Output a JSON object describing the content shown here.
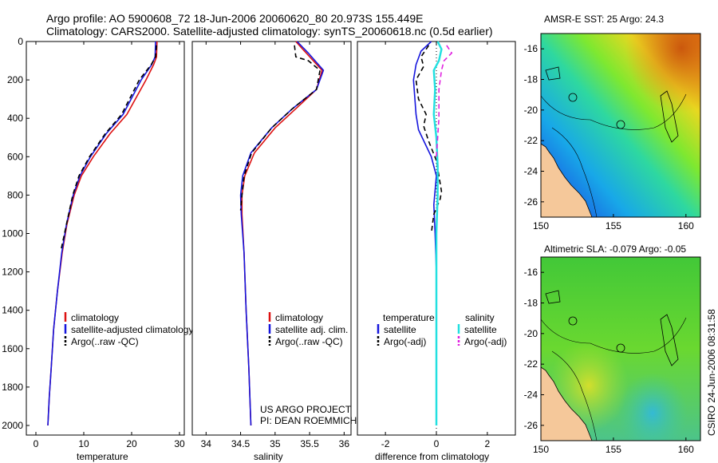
{
  "header": {
    "line1": "Argo profile: AO 5900608_72 18-Jun-2006 20060620_80 20.973S 155.449E",
    "line2": "Climatology: CARS2000. Satellite-adjusted climatology: synTS_20060618.nc (0.5d earlier)"
  },
  "side_text": "CSIRO 24-Jun-2006 08:31:58",
  "project": {
    "line1": "US ARGO PROJECT",
    "line2": "PI: DEAN ROEMMICH"
  },
  "colors": {
    "climatology": "#dd1111",
    "satellite": "#1515dd",
    "argo": "#000000",
    "sat_sal": "#22e0e0",
    "argo_sal": "#e020e0",
    "land": "#f5c89a"
  },
  "chart_data": [
    {
      "id": "temperature",
      "type": "line",
      "xlabel": "temperature",
      "xlim": [
        -2,
        31
      ],
      "ylim": [
        2050,
        0
      ],
      "xticks": [
        "0",
        "10",
        "20",
        "30"
      ],
      "xtick_values": [
        0,
        10,
        20,
        30
      ],
      "yticks": [
        "0",
        "200",
        "400",
        "600",
        "800",
        "1000",
        "1200",
        "1400",
        "1600",
        "1800",
        "2000"
      ],
      "ytick_values": [
        0,
        200,
        400,
        600,
        800,
        1000,
        1200,
        1400,
        1600,
        1800,
        2000
      ],
      "legend": [
        "climatology",
        "satellite-adjusted climatology",
        "Argo(..raw -QC)"
      ],
      "series": [
        {
          "name": "climatology",
          "color": "#dd1111",
          "dash": "",
          "points": [
            [
              25.3,
              0
            ],
            [
              25.2,
              80
            ],
            [
              24.6,
              120
            ],
            [
              23,
              200
            ],
            [
              19,
              380
            ],
            [
              15.5,
              480
            ],
            [
              12,
              600
            ],
            [
              9.5,
              700
            ],
            [
              8,
              800
            ],
            [
              6.5,
              950
            ],
            [
              5.5,
              1100
            ],
            [
              4.5,
              1300
            ],
            [
              3.7,
              1500
            ],
            [
              3.2,
              1700
            ],
            [
              2.8,
              1850
            ],
            [
              2.5,
              2000
            ]
          ]
        },
        {
          "name": "satellite",
          "color": "#1515dd",
          "dash": "",
          "points": [
            [
              25,
              0
            ],
            [
              24.9,
              80
            ],
            [
              24.2,
              120
            ],
            [
              22,
              200
            ],
            [
              18.2,
              380
            ],
            [
              14.7,
              480
            ],
            [
              11.4,
              600
            ],
            [
              9.2,
              700
            ],
            [
              7.8,
              800
            ],
            [
              6.4,
              950
            ],
            [
              5.4,
              1100
            ],
            [
              4.5,
              1300
            ],
            [
              3.7,
              1500
            ],
            [
              3.2,
              1700
            ],
            [
              2.8,
              1850
            ],
            [
              2.5,
              2000
            ]
          ]
        },
        {
          "name": "argo",
          "color": "#000000",
          "dash": "6,4",
          "points": [
            [
              25.2,
              20
            ],
            [
              25,
              80
            ],
            [
              24.1,
              120
            ],
            [
              21.6,
              200
            ],
            [
              17.9,
              380
            ],
            [
              14.5,
              480
            ],
            [
              11.2,
              600
            ],
            [
              9,
              700
            ],
            [
              7.7,
              800
            ],
            [
              6.4,
              950
            ],
            [
              5.3,
              1080
            ]
          ]
        }
      ]
    },
    {
      "id": "salinity",
      "type": "line",
      "xlabel": "salinity",
      "xlim": [
        33.8,
        36.1
      ],
      "ylim": [
        2050,
        0
      ],
      "xticks": [
        "34",
        "34.5",
        "35",
        "35.5",
        "36"
      ],
      "xtick_values": [
        34,
        34.5,
        35,
        35.5,
        36
      ],
      "legend": [
        "climatology",
        "satellite adj. clim.",
        "Argo(..raw -QC)"
      ],
      "series": [
        {
          "name": "climatology",
          "color": "#dd1111",
          "dash": "",
          "points": [
            [
              35.3,
              0
            ],
            [
              35.45,
              60
            ],
            [
              35.68,
              150
            ],
            [
              35.6,
              250
            ],
            [
              35.3,
              350
            ],
            [
              35,
              450
            ],
            [
              34.7,
              580
            ],
            [
              34.56,
              700
            ],
            [
              34.52,
              800
            ],
            [
              34.52,
              900
            ],
            [
              34.55,
              1100
            ],
            [
              34.58,
              1400
            ],
            [
              34.62,
              1700
            ],
            [
              34.65,
              2000
            ]
          ]
        },
        {
          "name": "satellite",
          "color": "#1515dd",
          "dash": "",
          "points": [
            [
              35.32,
              0
            ],
            [
              35.48,
              60
            ],
            [
              35.7,
              150
            ],
            [
              35.6,
              250
            ],
            [
              35.25,
              350
            ],
            [
              34.95,
              450
            ],
            [
              34.65,
              580
            ],
            [
              34.53,
              700
            ],
            [
              34.5,
              800
            ],
            [
              34.51,
              900
            ],
            [
              34.55,
              1100
            ],
            [
              34.58,
              1400
            ],
            [
              34.62,
              1700
            ],
            [
              34.65,
              2000
            ]
          ]
        },
        {
          "name": "argo",
          "color": "#000000",
          "dash": "6,4",
          "points": [
            [
              35.28,
              20
            ],
            [
              35.3,
              80
            ],
            [
              35.48,
              100
            ],
            [
              35.65,
              150
            ],
            [
              35.6,
              250
            ],
            [
              35.25,
              350
            ],
            [
              34.95,
              450
            ],
            [
              34.66,
              580
            ],
            [
              34.55,
              700
            ],
            [
              34.52,
              800
            ],
            [
              34.5,
              880
            ]
          ]
        }
      ]
    },
    {
      "id": "difference",
      "type": "line",
      "xlabel": "difference from climatology",
      "xlim": [
        -3.1,
        3.1
      ],
      "ylim": [
        2050,
        0
      ],
      "xticks": [
        "-2",
        "0",
        "2"
      ],
      "xtick_values": [
        -2,
        0,
        2
      ],
      "legend_headers": [
        "temperature",
        "salinity"
      ],
      "legend": [
        "satellite",
        "Argo(-adj)",
        "satellite",
        "Argo(-adj)"
      ],
      "series": [
        {
          "name": "temperature satellite",
          "color": "#1515dd",
          "dash": "",
          "points": [
            [
              -0.2,
              0
            ],
            [
              -0.6,
              50
            ],
            [
              -0.8,
              120
            ],
            [
              -0.9,
              200
            ],
            [
              -0.8,
              380
            ],
            [
              -0.7,
              460
            ],
            [
              -0.2,
              600
            ],
            [
              0,
              700
            ],
            [
              -0.1,
              850
            ],
            [
              -0.05,
              1000
            ],
            [
              0,
              1200
            ],
            [
              0,
              1500
            ],
            [
              0,
              2000
            ]
          ]
        },
        {
          "name": "temperature argo",
          "color": "#000000",
          "dash": "6,4",
          "points": [
            [
              -0.3,
              20
            ],
            [
              -0.6,
              80
            ],
            [
              -0.5,
              130
            ],
            [
              -0.8,
              200
            ],
            [
              -0.7,
              300
            ],
            [
              -0.4,
              380
            ],
            [
              -0.5,
              440
            ],
            [
              -0.3,
              520
            ],
            [
              0,
              620
            ],
            [
              0.2,
              780
            ],
            [
              0.15,
              820
            ],
            [
              -0.1,
              900
            ],
            [
              -0.2,
              1000
            ]
          ]
        },
        {
          "name": "salinity satellite",
          "color": "#22e0e0",
          "dash": "",
          "points": [
            [
              0.05,
              0
            ],
            [
              0.2,
              40
            ],
            [
              0.1,
              100
            ],
            [
              -0.1,
              150
            ],
            [
              -0.05,
              250
            ],
            [
              -0.1,
              380
            ],
            [
              0,
              500
            ],
            [
              0.05,
              650
            ],
            [
              0.05,
              800
            ],
            [
              0,
              1000
            ],
            [
              0,
              1400
            ],
            [
              0,
              2000
            ]
          ]
        },
        {
          "name": "salinity argo",
          "color": "#e020e0",
          "dash": "6,4",
          "points": [
            [
              0.4,
              20
            ],
            [
              0.6,
              60
            ],
            [
              0.3,
              100
            ],
            [
              0.2,
              150
            ],
            [
              0.1,
              250
            ],
            [
              0.1,
              400
            ],
            [
              0.05,
              500
            ],
            [
              0,
              600
            ]
          ]
        }
      ]
    },
    {
      "id": "sst_map",
      "type": "heatmap",
      "title": "AMSR-E SST: 25  Argo: 24.3",
      "xlim": [
        150,
        161
      ],
      "ylim": [
        -27,
        -15
      ],
      "xticks": [
        "150",
        "155",
        "160"
      ],
      "xtick_values": [
        150,
        155,
        160
      ],
      "yticks": [
        "-16",
        "-18",
        "-20",
        "-22",
        "-24",
        "-26"
      ],
      "ytick_values": [
        -16,
        -18,
        -20,
        -22,
        -24,
        -26
      ]
    },
    {
      "id": "sla_map",
      "type": "heatmap",
      "title": "Altimetric SLA: -0.079  Argo: -0.05",
      "xlim": [
        150,
        161
      ],
      "ylim": [
        -27,
        -15
      ],
      "xticks": [
        "150",
        "155",
        "160"
      ],
      "xtick_values": [
        150,
        155,
        160
      ],
      "yticks": [
        "-16",
        "-18",
        "-20",
        "-22",
        "-24",
        "-26"
      ],
      "ytick_values": [
        -16,
        -18,
        -20,
        -22,
        -24,
        -26
      ]
    }
  ]
}
